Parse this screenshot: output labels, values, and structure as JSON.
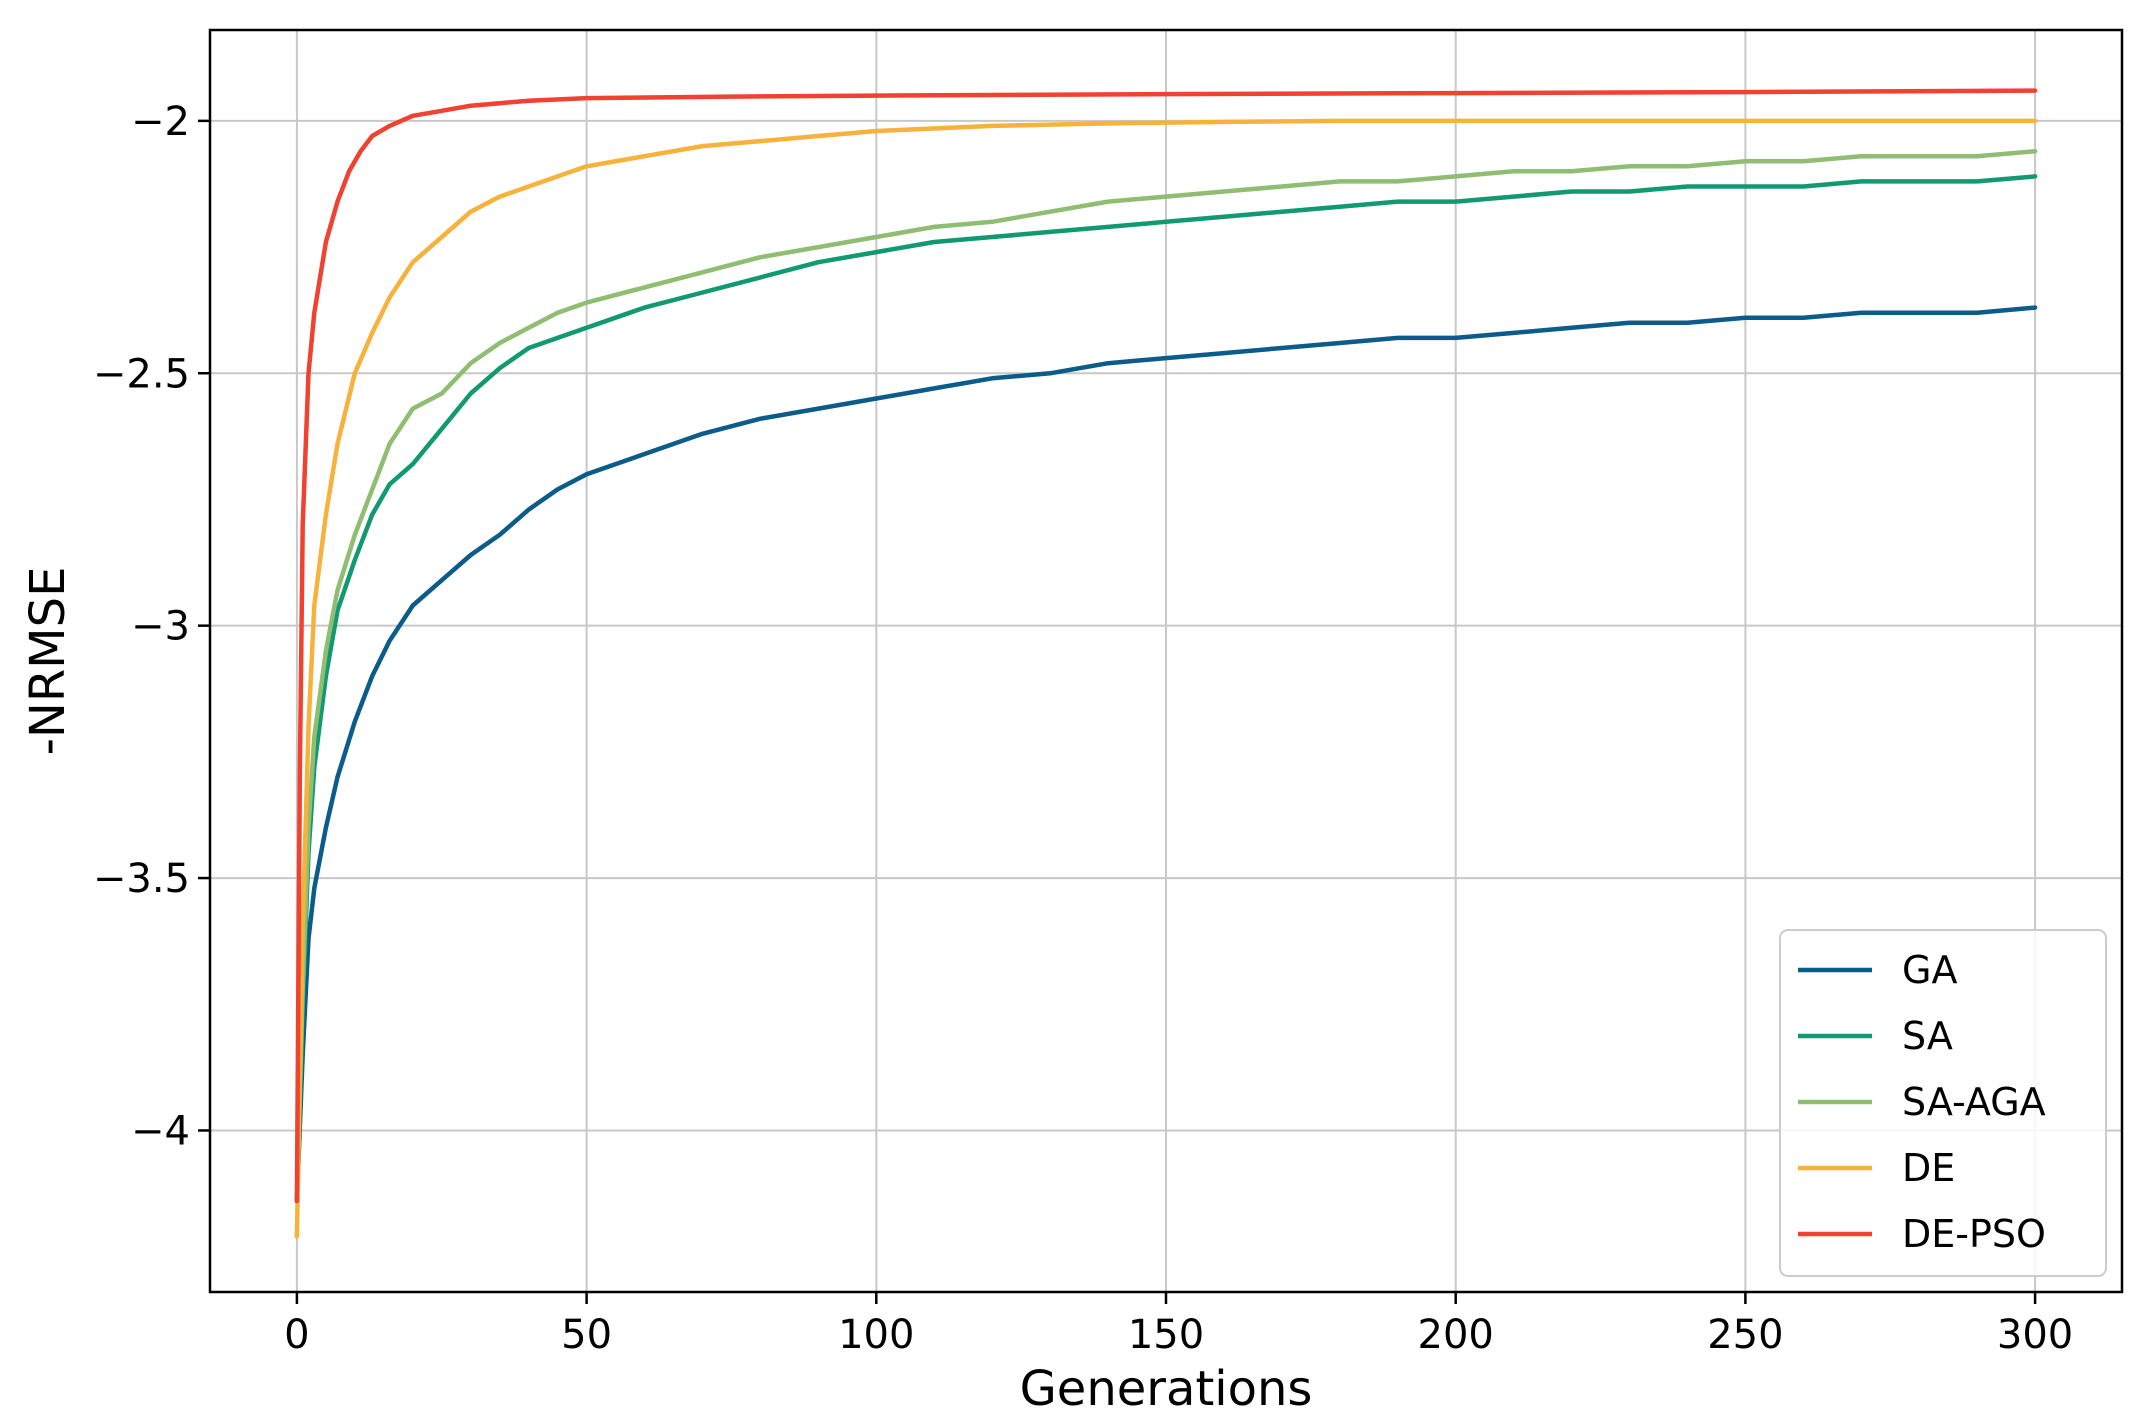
{
  "chart_data": {
    "type": "line",
    "title": "",
    "xlabel": "Generations",
    "ylabel": "-NRMSE",
    "xlim": [
      -15,
      315
    ],
    "ylim": [
      -4.32,
      -1.82
    ],
    "xticks": [
      0,
      50,
      100,
      150,
      200,
      250,
      300
    ],
    "yticks": [
      -4.0,
      -3.5,
      -3.0,
      -2.5,
      -2.0
    ],
    "grid": true,
    "legend_position": "lower-right",
    "series": [
      {
        "name": "GA",
        "color": "#0b5c8a",
        "points": [
          [
            0,
            -4.14
          ],
          [
            1,
            -3.85
          ],
          [
            2,
            -3.62
          ],
          [
            3,
            -3.52
          ],
          [
            5,
            -3.4
          ],
          [
            7,
            -3.3
          ],
          [
            10,
            -3.19
          ],
          [
            13,
            -3.1
          ],
          [
            16,
            -3.03
          ],
          [
            20,
            -2.96
          ],
          [
            25,
            -2.91
          ],
          [
            30,
            -2.86
          ],
          [
            35,
            -2.82
          ],
          [
            40,
            -2.77
          ],
          [
            45,
            -2.73
          ],
          [
            50,
            -2.7
          ],
          [
            60,
            -2.66
          ],
          [
            70,
            -2.62
          ],
          [
            80,
            -2.59
          ],
          [
            90,
            -2.57
          ],
          [
            100,
            -2.55
          ],
          [
            110,
            -2.53
          ],
          [
            120,
            -2.51
          ],
          [
            130,
            -2.5
          ],
          [
            140,
            -2.48
          ],
          [
            150,
            -2.47
          ],
          [
            160,
            -2.46
          ],
          [
            170,
            -2.45
          ],
          [
            180,
            -2.44
          ],
          [
            190,
            -2.43
          ],
          [
            200,
            -2.43
          ],
          [
            210,
            -2.42
          ],
          [
            220,
            -2.41
          ],
          [
            230,
            -2.4
          ],
          [
            240,
            -2.4
          ],
          [
            250,
            -2.39
          ],
          [
            260,
            -2.39
          ],
          [
            270,
            -2.38
          ],
          [
            280,
            -2.38
          ],
          [
            290,
            -2.38
          ],
          [
            300,
            -2.37
          ]
        ]
      },
      {
        "name": "SA",
        "color": "#119a72",
        "points": [
          [
            0,
            -4.14
          ],
          [
            1,
            -3.75
          ],
          [
            2,
            -3.45
          ],
          [
            3,
            -3.28
          ],
          [
            5,
            -3.1
          ],
          [
            7,
            -2.97
          ],
          [
            10,
            -2.87
          ],
          [
            13,
            -2.78
          ],
          [
            16,
            -2.72
          ],
          [
            20,
            -2.68
          ],
          [
            25,
            -2.61
          ],
          [
            30,
            -2.54
          ],
          [
            35,
            -2.49
          ],
          [
            40,
            -2.45
          ],
          [
            45,
            -2.43
          ],
          [
            50,
            -2.41
          ],
          [
            60,
            -2.37
          ],
          [
            70,
            -2.34
          ],
          [
            80,
            -2.31
          ],
          [
            90,
            -2.28
          ],
          [
            100,
            -2.26
          ],
          [
            110,
            -2.24
          ],
          [
            120,
            -2.23
          ],
          [
            130,
            -2.22
          ],
          [
            140,
            -2.21
          ],
          [
            150,
            -2.2
          ],
          [
            160,
            -2.19
          ],
          [
            170,
            -2.18
          ],
          [
            180,
            -2.17
          ],
          [
            190,
            -2.16
          ],
          [
            200,
            -2.16
          ],
          [
            210,
            -2.15
          ],
          [
            220,
            -2.14
          ],
          [
            230,
            -2.14
          ],
          [
            240,
            -2.13
          ],
          [
            250,
            -2.13
          ],
          [
            260,
            -2.13
          ],
          [
            270,
            -2.12
          ],
          [
            280,
            -2.12
          ],
          [
            290,
            -2.12
          ],
          [
            300,
            -2.11
          ]
        ]
      },
      {
        "name": "SA-AGA",
        "color": "#8fbe72",
        "points": [
          [
            0,
            -4.14
          ],
          [
            1,
            -3.72
          ],
          [
            2,
            -3.4
          ],
          [
            3,
            -3.22
          ],
          [
            5,
            -3.05
          ],
          [
            7,
            -2.93
          ],
          [
            10,
            -2.82
          ],
          [
            13,
            -2.73
          ],
          [
            16,
            -2.64
          ],
          [
            20,
            -2.57
          ],
          [
            25,
            -2.54
          ],
          [
            30,
            -2.48
          ],
          [
            35,
            -2.44
          ],
          [
            40,
            -2.41
          ],
          [
            45,
            -2.38
          ],
          [
            50,
            -2.36
          ],
          [
            60,
            -2.33
          ],
          [
            70,
            -2.3
          ],
          [
            80,
            -2.27
          ],
          [
            90,
            -2.25
          ],
          [
            100,
            -2.23
          ],
          [
            110,
            -2.21
          ],
          [
            120,
            -2.2
          ],
          [
            130,
            -2.18
          ],
          [
            140,
            -2.16
          ],
          [
            150,
            -2.15
          ],
          [
            160,
            -2.14
          ],
          [
            170,
            -2.13
          ],
          [
            180,
            -2.12
          ],
          [
            190,
            -2.12
          ],
          [
            200,
            -2.11
          ],
          [
            210,
            -2.1
          ],
          [
            220,
            -2.1
          ],
          [
            230,
            -2.09
          ],
          [
            240,
            -2.09
          ],
          [
            250,
            -2.08
          ],
          [
            260,
            -2.08
          ],
          [
            270,
            -2.07
          ],
          [
            280,
            -2.07
          ],
          [
            290,
            -2.07
          ],
          [
            300,
            -2.06
          ]
        ]
      },
      {
        "name": "DE",
        "color": "#f7b23b",
        "points": [
          [
            0,
            -4.21
          ],
          [
            1,
            -3.6
          ],
          [
            2,
            -3.2
          ],
          [
            3,
            -2.96
          ],
          [
            5,
            -2.78
          ],
          [
            7,
            -2.64
          ],
          [
            10,
            -2.5
          ],
          [
            13,
            -2.42
          ],
          [
            16,
            -2.35
          ],
          [
            20,
            -2.28
          ],
          [
            25,
            -2.23
          ],
          [
            30,
            -2.18
          ],
          [
            35,
            -2.15
          ],
          [
            40,
            -2.13
          ],
          [
            45,
            -2.11
          ],
          [
            50,
            -2.09
          ],
          [
            60,
            -2.07
          ],
          [
            70,
            -2.05
          ],
          [
            80,
            -2.04
          ],
          [
            90,
            -2.03
          ],
          [
            100,
            -2.02
          ],
          [
            120,
            -2.01
          ],
          [
            140,
            -2.005
          ],
          [
            160,
            -2.002
          ],
          [
            180,
            -2.0
          ],
          [
            200,
            -2.0
          ],
          [
            250,
            -2.0
          ],
          [
            300,
            -2.0
          ]
        ]
      },
      {
        "name": "DE-PSO",
        "color": "#f04131",
        "points": [
          [
            0,
            -4.14
          ],
          [
            0.5,
            -3.3
          ],
          [
            1,
            -2.8
          ],
          [
            2,
            -2.5
          ],
          [
            3,
            -2.38
          ],
          [
            5,
            -2.24
          ],
          [
            7,
            -2.16
          ],
          [
            9,
            -2.1
          ],
          [
            11,
            -2.06
          ],
          [
            13,
            -2.03
          ],
          [
            16,
            -2.01
          ],
          [
            20,
            -1.99
          ],
          [
            25,
            -1.98
          ],
          [
            30,
            -1.97
          ],
          [
            35,
            -1.965
          ],
          [
            40,
            -1.96
          ],
          [
            50,
            -1.955
          ],
          [
            75,
            -1.952
          ],
          [
            100,
            -1.95
          ],
          [
            150,
            -1.947
          ],
          [
            200,
            -1.945
          ],
          [
            250,
            -1.943
          ],
          [
            300,
            -1.94
          ]
        ]
      }
    ]
  }
}
